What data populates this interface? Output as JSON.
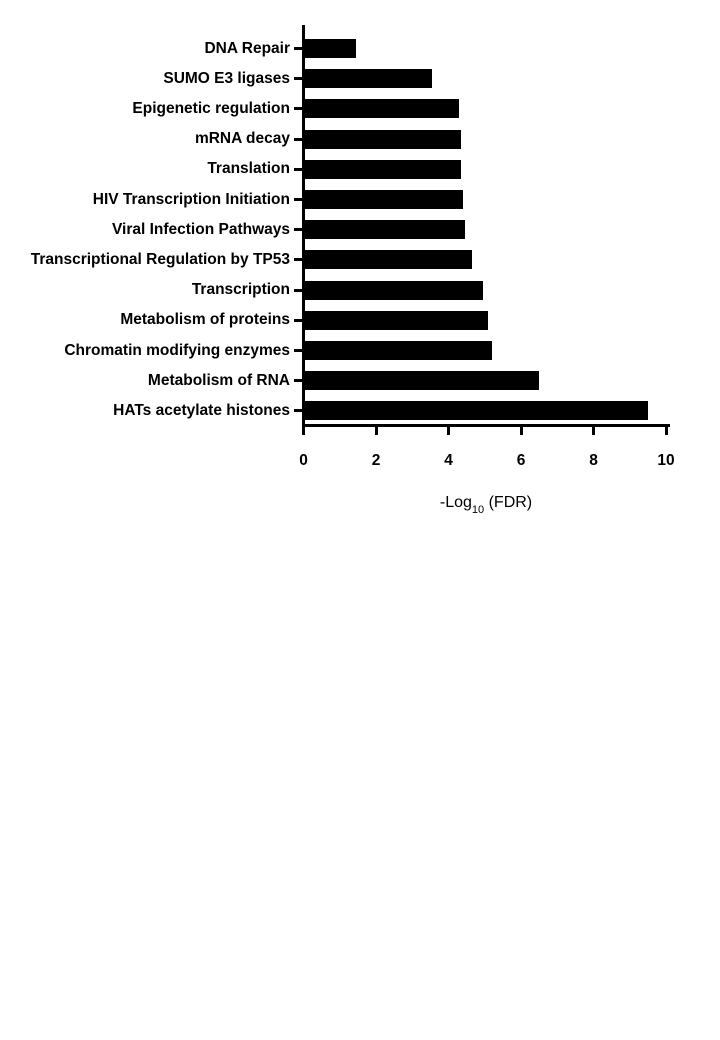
{
  "page": {
    "background": "#ffffff"
  },
  "chart_data": {
    "type": "bar",
    "orientation": "horizontal",
    "title": "",
    "categories": [
      "DNA Repair",
      "SUMO E3 ligases",
      "Epigenetic regulation",
      "mRNA decay",
      "Translation",
      "HIV Transcription Initiation",
      "Viral Infection Pathways",
      "Transcriptional Regulation by TP53",
      "Transcription",
      "Metabolism of proteins",
      "Chromatin modifying enzymes",
      "Metabolism of RNA",
      "HATs acetylate histones"
    ],
    "values": [
      1.4,
      3.5,
      4.25,
      4.3,
      4.3,
      4.35,
      4.4,
      4.6,
      4.9,
      5.05,
      5.15,
      6.45,
      9.45
    ],
    "xlabel": {
      "prefix": "-Log",
      "subscript": "10",
      "suffix": " (FDR)"
    },
    "xlim": [
      0,
      10
    ],
    "xticks": [
      0,
      2,
      4,
      6,
      8,
      10
    ],
    "bar_color": "#000000",
    "axis_color": "#000000",
    "text_color": "#000000",
    "grid": false,
    "legend": "none"
  }
}
